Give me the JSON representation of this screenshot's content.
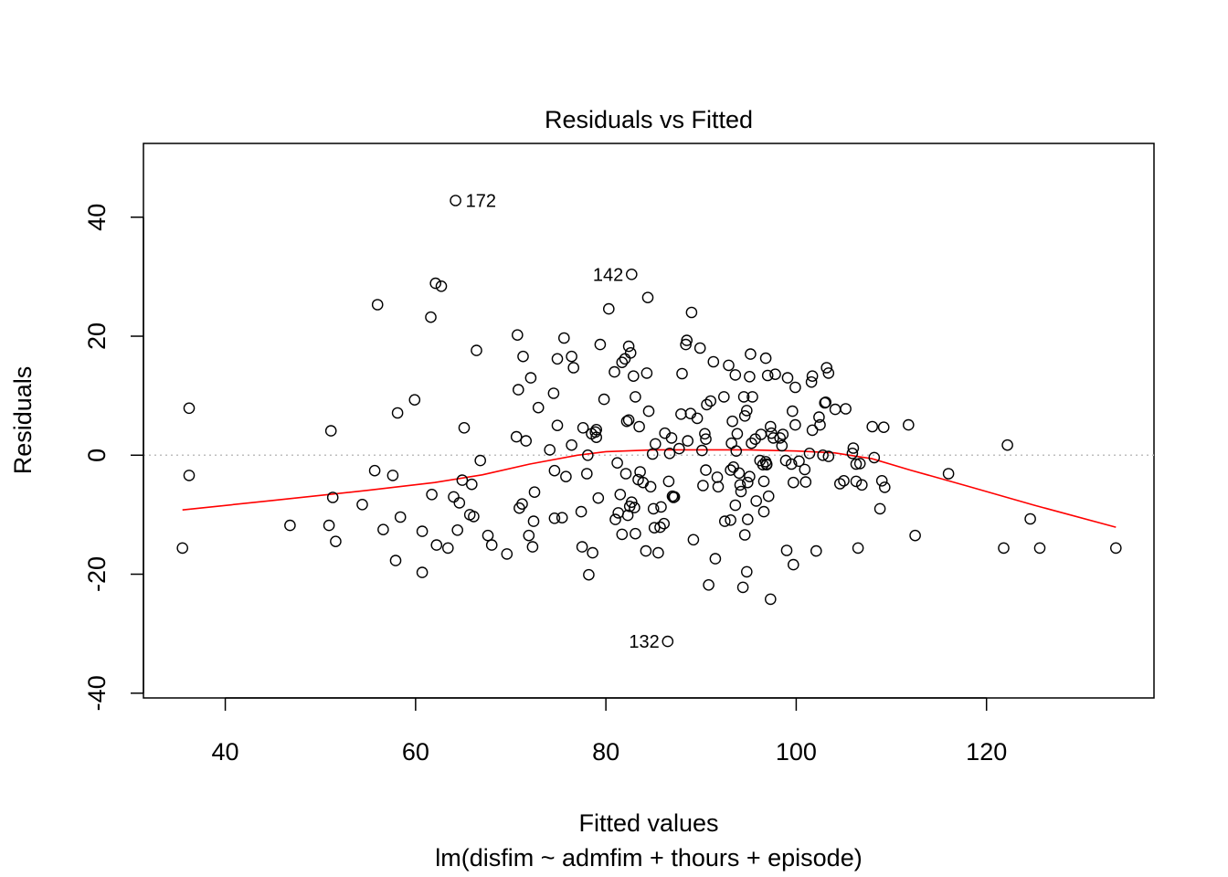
{
  "chart_data": {
    "type": "scatter",
    "title": "Residuals vs Fitted",
    "xlabel": "Fitted values",
    "subtitle": "lm(disfim ~ admfim + thours + episode)",
    "ylabel": "Residuals",
    "xlim": [
      31.4,
      137.6
    ],
    "ylim": [
      -40.8,
      52.4
    ],
    "xticks": [
      40,
      60,
      80,
      100,
      120
    ],
    "yticks": [
      -40,
      -20,
      0,
      20,
      40
    ],
    "reference_line": {
      "y": 0,
      "style": "dotted",
      "color": "#bebebe"
    },
    "point_color": "#000000",
    "smooth_color": "#ff0000",
    "labeled_points": [
      {
        "label": "172",
        "x": 64.2,
        "y": 42.8
      },
      {
        "label": "142",
        "x": 82.7,
        "y": 30.4
      },
      {
        "label": "132",
        "x": 86.5,
        "y": -31.3
      }
    ],
    "smooth": [
      [
        35.5,
        -9.2
      ],
      [
        45,
        -7.6
      ],
      [
        55,
        -5.9
      ],
      [
        62,
        -4.6
      ],
      [
        67,
        -3.3
      ],
      [
        72,
        -1.5
      ],
      [
        77,
        0.0
      ],
      [
        80,
        0.6
      ],
      [
        85,
        0.9
      ],
      [
        90,
        0.9
      ],
      [
        95,
        0.9
      ],
      [
        100,
        0.7
      ],
      [
        104,
        0.4
      ],
      [
        108,
        -0.6
      ],
      [
        112,
        -2.5
      ],
      [
        118,
        -5.2
      ],
      [
        125,
        -8.4
      ],
      [
        133.6,
        -12.1
      ]
    ],
    "points": [
      [
        35.5,
        -15.6
      ],
      [
        36.2,
        7.9
      ],
      [
        36.2,
        -3.4
      ],
      [
        46.8,
        -11.8
      ],
      [
        50.9,
        -11.8
      ],
      [
        51.1,
        4.1
      ],
      [
        51.3,
        -7.1
      ],
      [
        51.6,
        -14.5
      ],
      [
        54.4,
        -8.3
      ],
      [
        55.7,
        -2.6
      ],
      [
        56.0,
        25.3
      ],
      [
        56.6,
        -12.5
      ],
      [
        57.6,
        -3.4
      ],
      [
        57.9,
        -17.7
      ],
      [
        58.1,
        7.1
      ],
      [
        58.4,
        -10.4
      ],
      [
        59.9,
        9.3
      ],
      [
        60.7,
        -12.8
      ],
      [
        60.7,
        -19.7
      ],
      [
        61.6,
        23.2
      ],
      [
        61.7,
        -6.6
      ],
      [
        62.1,
        28.9
      ],
      [
        62.2,
        -15.1
      ],
      [
        62.7,
        28.4
      ],
      [
        63.4,
        -15.6
      ],
      [
        64.0,
        -7.0
      ],
      [
        64.2,
        42.8
      ],
      [
        64.4,
        -12.6
      ],
      [
        64.6,
        -8.0
      ],
      [
        64.9,
        -4.2
      ],
      [
        65.1,
        4.6
      ],
      [
        65.7,
        -10.0
      ],
      [
        65.9,
        -4.9
      ],
      [
        66.1,
        -10.3
      ],
      [
        66.4,
        17.6
      ],
      [
        66.8,
        -0.9
      ],
      [
        67.6,
        -13.5
      ],
      [
        68.0,
        -15.1
      ],
      [
        69.6,
        -16.6
      ],
      [
        70.6,
        3.1
      ],
      [
        70.7,
        20.2
      ],
      [
        70.8,
        11.0
      ],
      [
        70.9,
        -8.9
      ],
      [
        71.2,
        -8.2
      ],
      [
        71.3,
        16.6
      ],
      [
        71.6,
        2.4
      ],
      [
        71.9,
        -13.5
      ],
      [
        72.1,
        13.0
      ],
      [
        72.3,
        -15.4
      ],
      [
        72.4,
        -11.1
      ],
      [
        72.5,
        -6.2
      ],
      [
        72.9,
        8.0
      ],
      [
        74.1,
        0.9
      ],
      [
        74.5,
        10.4
      ],
      [
        74.6,
        -2.6
      ],
      [
        74.6,
        -10.6
      ],
      [
        74.9,
        16.2
      ],
      [
        74.9,
        5.0
      ],
      [
        75.4,
        -10.5
      ],
      [
        75.6,
        19.7
      ],
      [
        75.8,
        -3.6
      ],
      [
        76.4,
        1.7
      ],
      [
        76.4,
        16.6
      ],
      [
        76.6,
        14.7
      ],
      [
        77.4,
        -9.5
      ],
      [
        77.5,
        -15.4
      ],
      [
        77.6,
        4.6
      ],
      [
        78.0,
        -3.1
      ],
      [
        78.1,
        0.0
      ],
      [
        78.2,
        -20.1
      ],
      [
        78.5,
        3.6
      ],
      [
        78.6,
        -16.4
      ],
      [
        78.9,
        3.9
      ],
      [
        79.0,
        4.3
      ],
      [
        79.0,
        3.0
      ],
      [
        79.2,
        -7.2
      ],
      [
        79.4,
        18.6
      ],
      [
        79.8,
        9.4
      ],
      [
        80.3,
        24.6
      ],
      [
        80.9,
        14.0
      ],
      [
        81.0,
        -10.8
      ],
      [
        81.2,
        -1.3
      ],
      [
        81.3,
        -9.7
      ],
      [
        81.5,
        -6.6
      ],
      [
        81.7,
        -13.3
      ],
      [
        81.7,
        15.6
      ],
      [
        82.0,
        16.2
      ],
      [
        82.1,
        -3.1
      ],
      [
        82.2,
        5.7
      ],
      [
        82.3,
        -10.1
      ],
      [
        82.4,
        18.3
      ],
      [
        82.4,
        5.9
      ],
      [
        82.5,
        -8.6
      ],
      [
        82.6,
        17.2
      ],
      [
        82.7,
        30.4
      ],
      [
        82.7,
        -7.9
      ],
      [
        82.9,
        13.3
      ],
      [
        83.0,
        -8.8
      ],
      [
        83.1,
        -13.2
      ],
      [
        83.1,
        9.8
      ],
      [
        83.4,
        -4.1
      ],
      [
        83.5,
        4.8
      ],
      [
        83.6,
        -2.8
      ],
      [
        83.9,
        -4.6
      ],
      [
        84.2,
        -16.1
      ],
      [
        84.3,
        13.8
      ],
      [
        84.4,
        26.5
      ],
      [
        84.5,
        7.4
      ],
      [
        84.7,
        -5.3
      ],
      [
        84.9,
        0.2
      ],
      [
        85.0,
        -9.0
      ],
      [
        85.1,
        -12.2
      ],
      [
        85.2,
        1.9
      ],
      [
        85.5,
        -16.4
      ],
      [
        85.7,
        -12.1
      ],
      [
        85.8,
        -8.7
      ],
      [
        86.1,
        -11.5
      ],
      [
        86.2,
        3.7
      ],
      [
        86.5,
        -31.3
      ],
      [
        86.6,
        -4.4
      ],
      [
        86.7,
        0.3
      ],
      [
        86.9,
        2.9
      ],
      [
        87.0,
        -6.9
      ],
      [
        87.1,
        -7.1
      ],
      [
        87.2,
        -7.0
      ],
      [
        87.7,
        1.1
      ],
      [
        87.9,
        6.9
      ],
      [
        88.0,
        13.7
      ],
      [
        88.4,
        18.6
      ],
      [
        88.5,
        19.3
      ],
      [
        88.6,
        2.4
      ],
      [
        88.9,
        7.0
      ],
      [
        89.0,
        24.0
      ],
      [
        89.2,
        -14.2
      ],
      [
        89.6,
        6.2
      ],
      [
        89.9,
        18.0
      ],
      [
        90.1,
        0.8
      ],
      [
        90.2,
        -5.1
      ],
      [
        90.4,
        3.6
      ],
      [
        90.5,
        -2.5
      ],
      [
        90.5,
        2.7
      ],
      [
        90.6,
        8.5
      ],
      [
        90.8,
        -21.8
      ],
      [
        91.0,
        9.1
      ],
      [
        91.3,
        15.7
      ],
      [
        91.5,
        -17.4
      ],
      [
        91.7,
        -3.7
      ],
      [
        91.8,
        -5.3
      ],
      [
        92.4,
        9.8
      ],
      [
        92.5,
        -11.1
      ],
      [
        92.9,
        15.1
      ],
      [
        93.1,
        -10.9
      ],
      [
        93.1,
        -2.5
      ],
      [
        93.2,
        2.0
      ],
      [
        93.3,
        5.7
      ],
      [
        93.4,
        -2.0
      ],
      [
        93.6,
        -8.4
      ],
      [
        93.6,
        13.5
      ],
      [
        93.7,
        0.7
      ],
      [
        93.8,
        3.6
      ],
      [
        94.0,
        -3.0
      ],
      [
        94.1,
        -5.0
      ],
      [
        94.2,
        -6.1
      ],
      [
        94.4,
        -22.2
      ],
      [
        94.5,
        9.8
      ],
      [
        94.6,
        -13.4
      ],
      [
        94.6,
        6.6
      ],
      [
        94.8,
        7.5
      ],
      [
        94.8,
        -19.6
      ],
      [
        94.9,
        -4.6
      ],
      [
        94.9,
        -10.8
      ],
      [
        95.1,
        -3.6
      ],
      [
        95.1,
        13.2
      ],
      [
        95.2,
        17.0
      ],
      [
        95.3,
        2.0
      ],
      [
        95.4,
        9.8
      ],
      [
        95.7,
        2.7
      ],
      [
        95.8,
        -7.7
      ],
      [
        96.2,
        -0.9
      ],
      [
        96.3,
        3.5
      ],
      [
        96.5,
        -1.6
      ],
      [
        96.6,
        -9.5
      ],
      [
        96.6,
        -4.4
      ],
      [
        96.8,
        -1.1
      ],
      [
        96.8,
        16.3
      ],
      [
        96.9,
        -1.6
      ],
      [
        96.9,
        -1.5
      ],
      [
        97.0,
        13.4
      ],
      [
        97.1,
        -6.9
      ],
      [
        97.3,
        -24.2
      ],
      [
        97.3,
        4.8
      ],
      [
        97.4,
        3.7
      ],
      [
        97.6,
        2.9
      ],
      [
        97.8,
        13.6
      ],
      [
        98.3,
        2.9
      ],
      [
        98.5,
        1.6
      ],
      [
        98.6,
        3.5
      ],
      [
        98.9,
        -0.9
      ],
      [
        99.0,
        -16.0
      ],
      [
        99.1,
        13.0
      ],
      [
        99.5,
        -1.5
      ],
      [
        99.6,
        7.4
      ],
      [
        99.7,
        -18.4
      ],
      [
        99.7,
        -4.6
      ],
      [
        99.9,
        11.4
      ],
      [
        99.9,
        5.1
      ],
      [
        100.3,
        -1.0
      ],
      [
        100.9,
        -2.4
      ],
      [
        101.0,
        -4.5
      ],
      [
        101.4,
        0.3
      ],
      [
        101.6,
        12.3
      ],
      [
        101.7,
        13.3
      ],
      [
        101.7,
        4.2
      ],
      [
        102.1,
        -16.1
      ],
      [
        102.4,
        6.4
      ],
      [
        102.5,
        5.1
      ],
      [
        102.8,
        0.0
      ],
      [
        103.0,
        8.8
      ],
      [
        103.1,
        8.9
      ],
      [
        103.2,
        14.7
      ],
      [
        103.4,
        -0.2
      ],
      [
        103.4,
        13.8
      ],
      [
        104.1,
        7.7
      ],
      [
        104.6,
        -4.8
      ],
      [
        105.0,
        -4.3
      ],
      [
        105.2,
        7.8
      ],
      [
        105.9,
        0.3
      ],
      [
        106.0,
        1.2
      ],
      [
        106.3,
        -1.5
      ],
      [
        106.3,
        -4.4
      ],
      [
        106.5,
        -15.6
      ],
      [
        106.7,
        -1.4
      ],
      [
        106.9,
        -5.0
      ],
      [
        108.0,
        4.8
      ],
      [
        108.2,
        -0.4
      ],
      [
        108.8,
        -9.0
      ],
      [
        109.0,
        -4.3
      ],
      [
        109.2,
        4.7
      ],
      [
        109.3,
        -5.4
      ],
      [
        111.8,
        5.1
      ],
      [
        112.5,
        -13.5
      ],
      [
        116.0,
        -3.1
      ],
      [
        121.8,
        -15.6
      ],
      [
        122.2,
        1.7
      ],
      [
        124.6,
        -10.7
      ],
      [
        125.6,
        -15.6
      ],
      [
        133.6,
        -15.6
      ]
    ]
  }
}
